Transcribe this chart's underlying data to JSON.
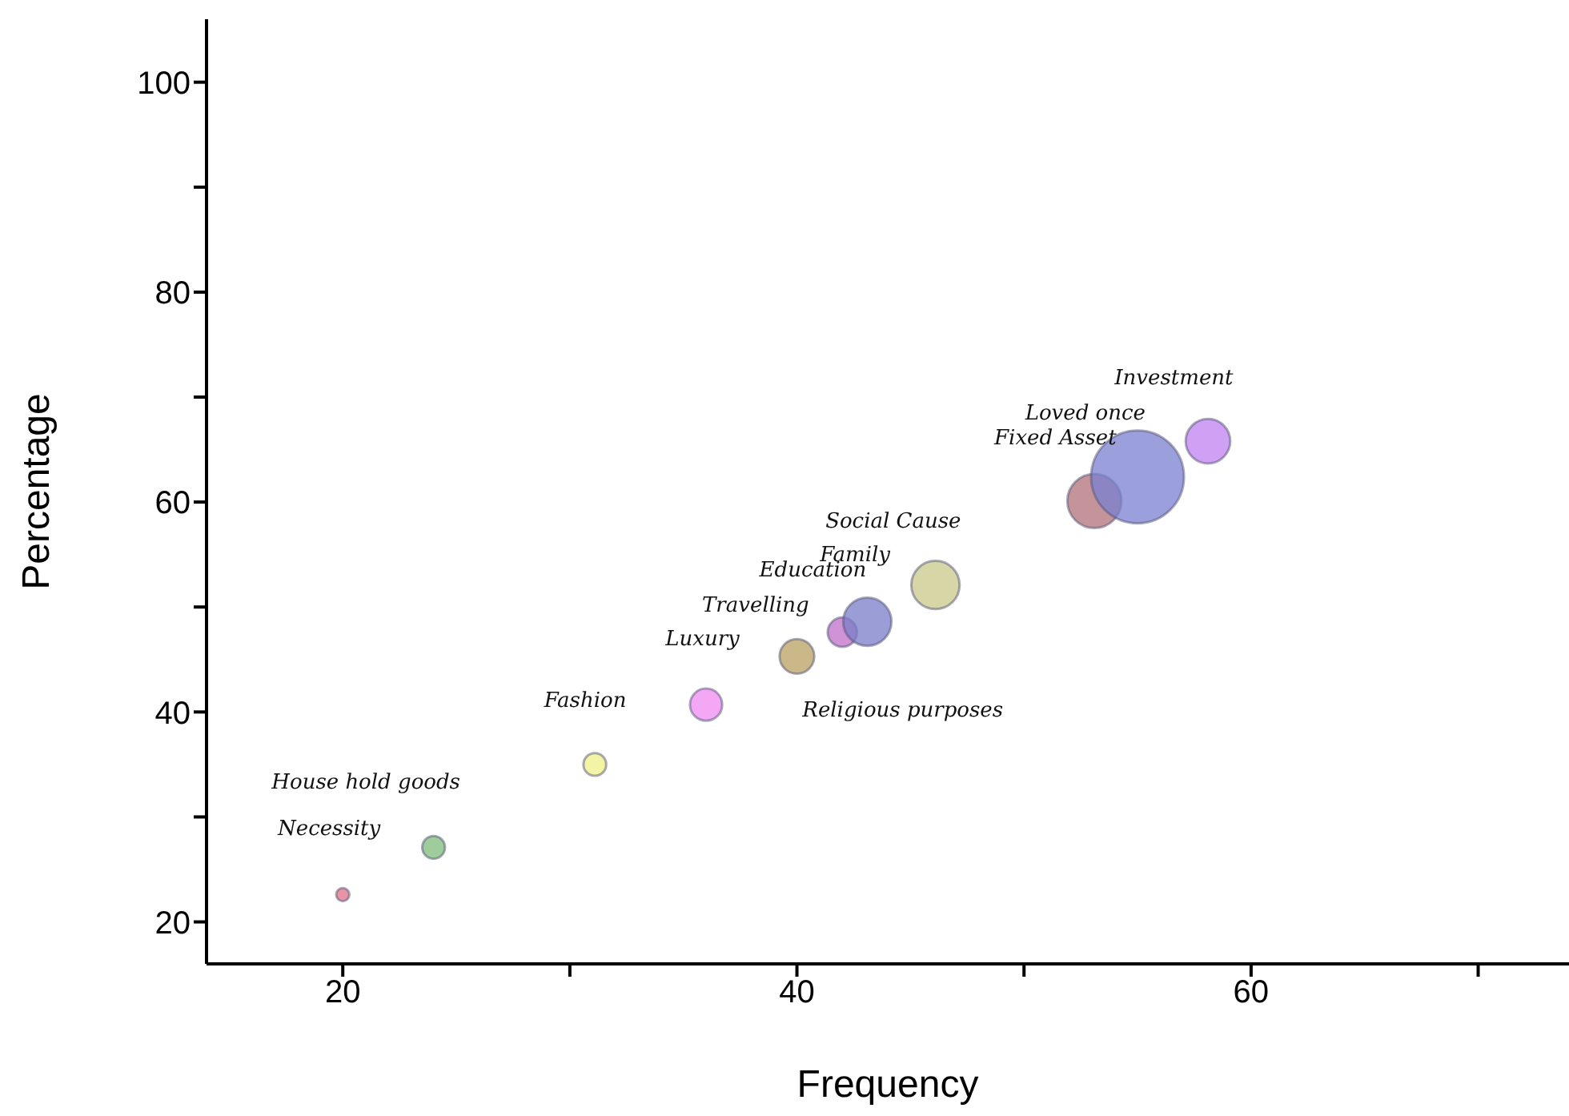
{
  "chart_data": {
    "type": "bubble",
    "xlabel": "Frequency",
    "ylabel": "Percentage",
    "x": [
      20,
      24,
      31.1,
      36,
      40,
      42,
      43.1,
      46.1,
      53.1,
      55,
      58.1
    ],
    "values": [
      22.6,
      27.1,
      35,
      40.7,
      45.3,
      47.6,
      48.6,
      52.1,
      60.1,
      62.4,
      65.8
    ],
    "sizes": [
      0.02,
      0.06,
      0.06,
      0.12,
      0.14,
      0.1,
      0.27,
      0.27,
      0.34,
      1,
      0.23
    ],
    "colors": [
      "#e0708a",
      "#7dbb7a",
      "#f0f08a",
      "#f08af0",
      "#b8a060",
      "#c070c8",
      "#7a7ec8",
      "#c8c888",
      "#b07078",
      "#7a80d0",
      "#c080f0"
    ],
    "xlim": [
      14,
      74
    ],
    "xticks": [
      20,
      {
        "value": 30,
        "label": null
      },
      40,
      {
        "value": 50,
        "label": null
      },
      60,
      {
        "value": 70,
        "label": null
      }
    ],
    "ylim": [
      16,
      106
    ],
    "yticks": [
      20,
      {
        "value": 30,
        "label": null
      },
      40,
      {
        "value": 50,
        "label": null
      },
      60,
      {
        "value": 70,
        "label": null
      },
      80,
      {
        "value": 90,
        "label": null
      },
      100
    ],
    "grid": false,
    "legend": false,
    "annotations": [
      "Investment",
      "Loved once",
      "Fixed Asset",
      "Social Cause",
      "Family",
      "Education",
      "Travelling",
      "Luxury",
      "Fashion",
      "Religious purposes",
      "House hold goods",
      "Necessity"
    ]
  }
}
